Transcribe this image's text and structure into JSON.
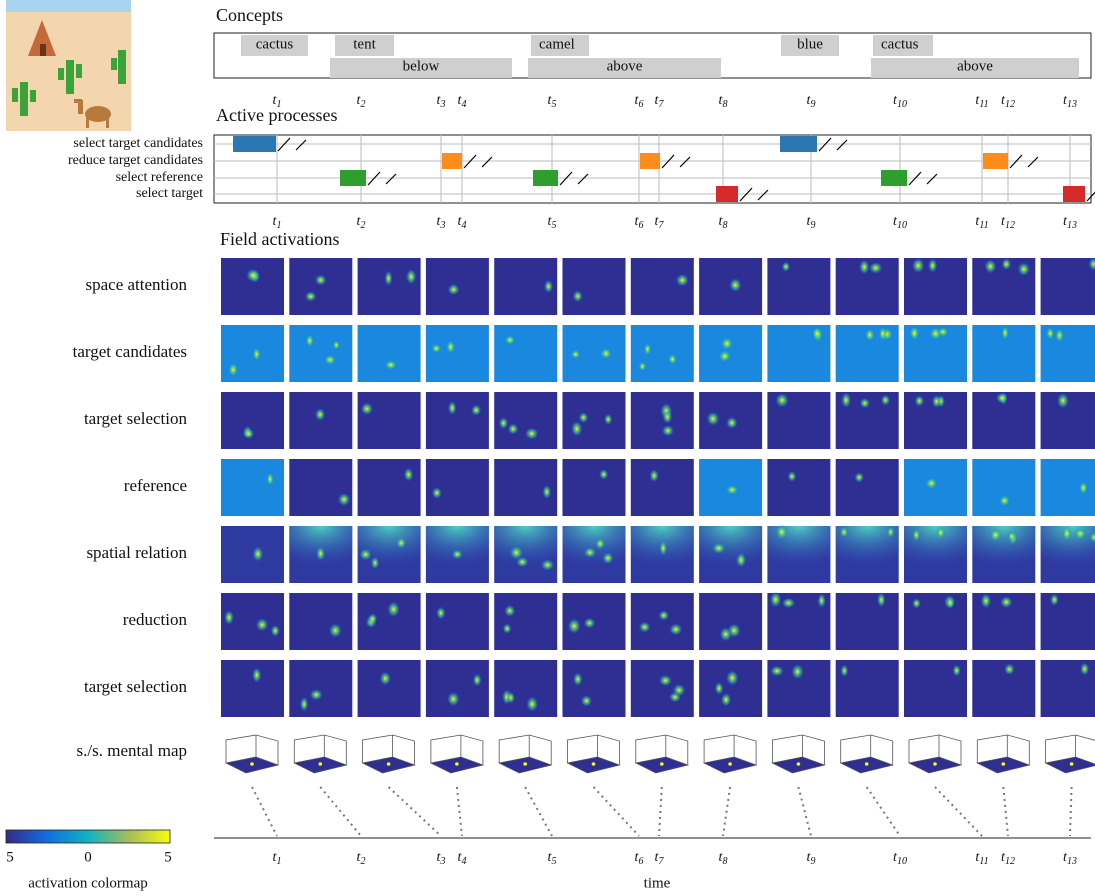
{
  "concepts": {
    "title": "Concepts",
    "objects": [
      "cactus",
      "tent",
      "camel",
      "blue",
      "cactus"
    ],
    "relations": [
      "below",
      "above",
      "above"
    ]
  },
  "active_processes": {
    "title": "Active processes",
    "processes": [
      "select target candidates",
      "reduce target candidates",
      "select reference",
      "select target"
    ]
  },
  "field_activations": {
    "title": "Field activations",
    "fields": [
      "space attention",
      "target candidates",
      "target selection",
      "reference",
      "spatial relation",
      "reduction",
      "target selection"
    ],
    "mental_map": "s./s. mental map"
  },
  "time_axis": {
    "symbol": "t",
    "subscripts": [
      "1",
      "2",
      "3",
      "4",
      "5",
      "6",
      "7",
      "8",
      "9",
      "10",
      "11",
      "12",
      "13"
    ],
    "label": "time"
  },
  "colormap": {
    "ticks": [
      "5",
      "0",
      "5"
    ],
    "label": "activation colormap"
  }
}
